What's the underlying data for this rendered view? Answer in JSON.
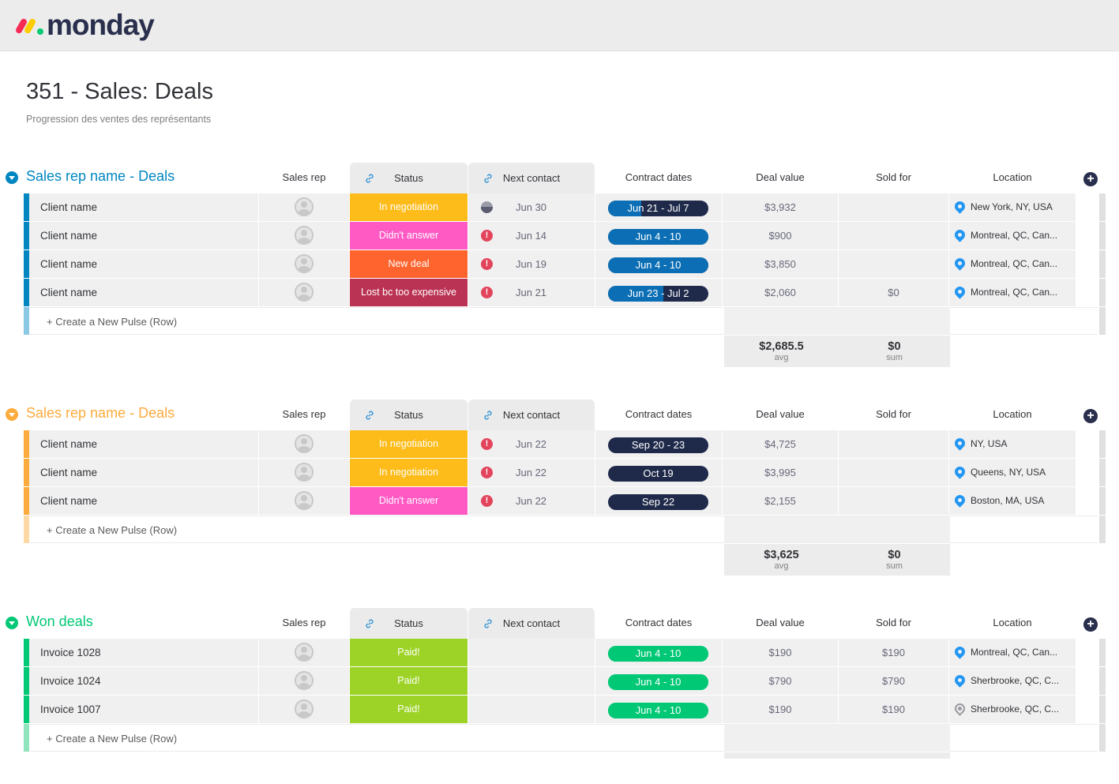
{
  "app": {
    "logo_text": "monday"
  },
  "board": {
    "title": "351 - Sales: Deals",
    "description": "Progression des ventes des représentants"
  },
  "columns": {
    "sales_rep": "Sales rep",
    "status": "Status",
    "next_contact": "Next contact",
    "contract_dates": "Contract dates",
    "deal_value": "Deal value",
    "sold_for": "Sold for",
    "location": "Location"
  },
  "create_label": "+ Create a New Pulse (Row)",
  "groups": [
    {
      "name": "Sales rep name - Deals",
      "color": "#0086c0",
      "light_color": "#8ac8e4",
      "rows": [
        {
          "name": "Client name",
          "status": "In negotiation",
          "status_color": "#fdbc1a",
          "next_icon": "pie",
          "next": "Jun 30",
          "dates": "Jun 21 - Jul 7",
          "dates_progress": 0.33,
          "dates_color": "#0c6fb5",
          "dates_bg": "#1f2a4a",
          "deal": "$3,932",
          "sold": "",
          "location": "New York, NY, USA",
          "pin": "filled"
        },
        {
          "name": "Client name",
          "status": "Didn't answer",
          "status_color": "#ff5ac4",
          "next_icon": "alert",
          "next": "Jun 14",
          "dates": "Jun 4 - 10",
          "dates_progress": 1,
          "dates_color": "#0c6fb5",
          "dates_bg": "#1f2a4a",
          "deal": "$900",
          "sold": "",
          "location": "Montreal, QC, Can...",
          "pin": "filled"
        },
        {
          "name": "Client name",
          "status": "New deal",
          "status_color": "#ff642e",
          "next_icon": "alert",
          "next": "Jun 19",
          "dates": "Jun 4 - 10",
          "dates_progress": 1,
          "dates_color": "#0c6fb5",
          "dates_bg": "#1f2a4a",
          "deal": "$3,850",
          "sold": "",
          "location": "Montreal, QC, Can...",
          "pin": "filled"
        },
        {
          "name": "Client name",
          "status": "Lost bc too expensive",
          "status_color": "#bb3354",
          "next_icon": "alert",
          "next": "Jun 21",
          "dates": "Jun 23 - Jul 2",
          "dates_progress": 0.55,
          "dates_color": "#0c6fb5",
          "dates_bg": "#1f2a4a",
          "deal": "$2,060",
          "sold": "$0",
          "location": "Montreal, QC, Can...",
          "pin": "filled"
        }
      ],
      "summary": {
        "deal_value": "$2,685.5",
        "deal_label": "avg",
        "sold_for": "$0",
        "sold_label": "sum"
      }
    },
    {
      "name": "Sales rep name - Deals",
      "color": "#fdab3d",
      "light_color": "#fdd9a6",
      "rows": [
        {
          "name": "Client name",
          "status": "In negotiation",
          "status_color": "#fdbc1a",
          "next_icon": "alert",
          "next": "Jun 22",
          "dates": "Sep 20 - 23",
          "dates_progress": 0,
          "dates_color": "#0c6fb5",
          "dates_bg": "#1f2a4a",
          "deal": "$4,725",
          "sold": "",
          "location": "NY, USA",
          "pin": "filled"
        },
        {
          "name": "Client name",
          "status": "In negotiation",
          "status_color": "#fdbc1a",
          "next_icon": "alert",
          "next": "Jun 22",
          "dates": "Oct 19",
          "dates_progress": 0,
          "dates_color": "#0c6fb5",
          "dates_bg": "#1f2a4a",
          "deal": "$3,995",
          "sold": "",
          "location": "Queens, NY, USA",
          "pin": "filled"
        },
        {
          "name": "Client name",
          "status": "Didn't answer",
          "status_color": "#ff5ac4",
          "next_icon": "alert",
          "next": "Jun 22",
          "dates": "Sep 22",
          "dates_progress": 0,
          "dates_color": "#0c6fb5",
          "dates_bg": "#1f2a4a",
          "deal": "$2,155",
          "sold": "",
          "location": "Boston, MA, USA",
          "pin": "filled"
        }
      ],
      "summary": {
        "deal_value": "$3,625",
        "deal_label": "avg",
        "sold_for": "$0",
        "sold_label": "sum"
      }
    },
    {
      "name": "Won deals",
      "color": "#00c875",
      "light_color": "#8fe3bd",
      "rows": [
        {
          "name": "Invoice 1028",
          "status": "Paid!",
          "status_color": "#9cd326",
          "next_icon": "",
          "next": "",
          "dates": "Jun 4 - 10",
          "dates_progress": 1,
          "dates_color": "#00c875",
          "dates_bg": "#00c875",
          "deal": "$190",
          "sold": "$190",
          "location": "Montreal, QC, Can...",
          "pin": "filled"
        },
        {
          "name": "Invoice 1024",
          "status": "Paid!",
          "status_color": "#9cd326",
          "next_icon": "",
          "next": "",
          "dates": "Jun 4 - 10",
          "dates_progress": 1,
          "dates_color": "#00c875",
          "dates_bg": "#00c875",
          "deal": "$790",
          "sold": "$790",
          "location": "Sherbrooke, QC, C...",
          "pin": "filled"
        },
        {
          "name": "Invoice 1007",
          "status": "Paid!",
          "status_color": "#9cd326",
          "next_icon": "",
          "next": "",
          "dates": "Jun 4 - 10",
          "dates_progress": 1,
          "dates_color": "#00c875",
          "dates_bg": "#00c875",
          "deal": "$190",
          "sold": "$190",
          "location": "Sherbrooke, QC, C...",
          "pin": "outline"
        }
      ],
      "summary": null
    }
  ]
}
